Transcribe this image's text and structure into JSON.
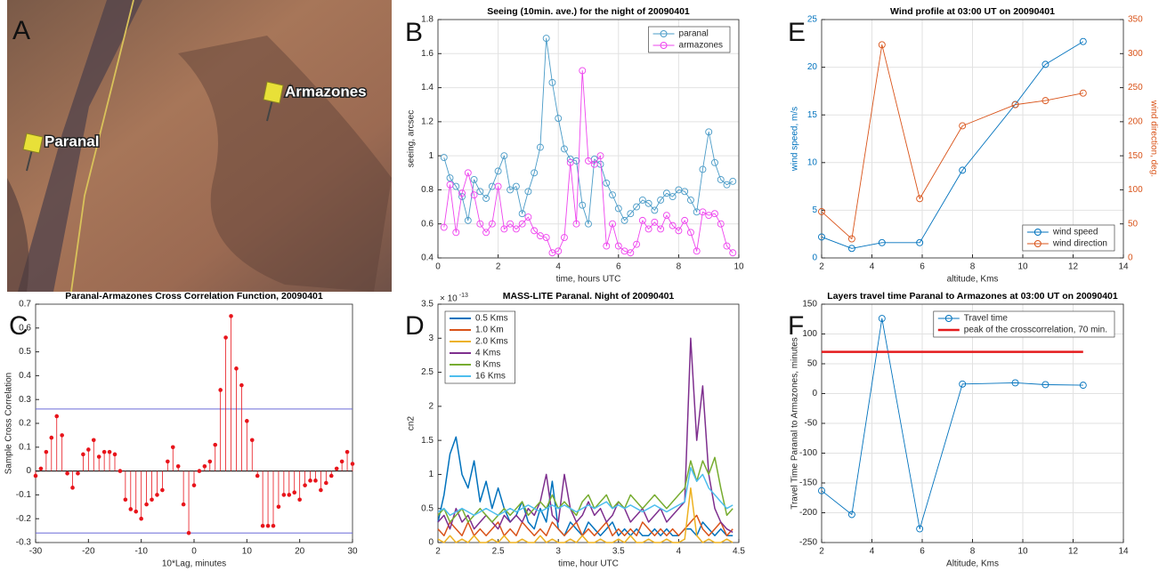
{
  "map": {
    "panel": "A",
    "labels": [
      "Paranal",
      "Armazones"
    ]
  },
  "chart_data": [
    {
      "type": "line",
      "panel": "B",
      "title": "Seeing (10min. ave.) for the night of 20090401",
      "xlabel": "time, hours UTC",
      "ylabel": "seeing, arcsec",
      "xlim": [
        0,
        10
      ],
      "xticks": [
        0,
        2,
        4,
        6,
        8,
        10
      ],
      "ylim": [
        0.4,
        1.8
      ],
      "yticks": [
        0.4,
        0.6,
        0.8,
        1,
        1.2,
        1.4,
        1.6,
        1.8
      ],
      "grid": true,
      "legend": "northeast",
      "x": [
        0.2,
        0.4,
        0.6,
        0.8,
        1.0,
        1.2,
        1.4,
        1.6,
        1.8,
        2.0,
        2.2,
        2.4,
        2.6,
        2.8,
        3.0,
        3.2,
        3.4,
        3.6,
        3.8,
        4.0,
        4.2,
        4.4,
        4.6,
        4.8,
        5.0,
        5.2,
        5.4,
        5.6,
        5.8,
        6.0,
        6.2,
        6.4,
        6.6,
        6.8,
        7.0,
        7.2,
        7.4,
        7.6,
        7.8,
        8.0,
        8.2,
        8.4,
        8.6,
        8.8,
        9.0,
        9.2,
        9.4,
        9.6,
        9.8
      ],
      "series": [
        {
          "name": "paranal",
          "color": "#4a9bc7",
          "marker": true,
          "values": [
            0.99,
            0.87,
            0.82,
            0.76,
            0.62,
            0.86,
            0.79,
            0.75,
            0.82,
            0.91,
            1.0,
            0.8,
            0.82,
            0.66,
            0.79,
            0.9,
            1.05,
            1.69,
            1.43,
            1.22,
            1.04,
            0.98,
            0.97,
            0.71,
            0.6,
            0.98,
            0.95,
            0.84,
            0.77,
            0.69,
            0.62,
            0.66,
            0.7,
            0.74,
            0.72,
            0.68,
            0.74,
            0.78,
            0.76,
            0.8,
            0.79,
            0.74,
            0.67,
            0.92,
            1.14,
            0.96,
            0.86,
            0.83,
            0.85
          ]
        },
        {
          "name": "armazones",
          "color": "#ee44ee",
          "marker": true,
          "values": [
            0.58,
            0.83,
            0.55,
            0.78,
            0.9,
            0.77,
            0.6,
            0.55,
            0.6,
            0.82,
            0.57,
            0.6,
            0.57,
            0.6,
            0.64,
            0.56,
            0.53,
            0.52,
            0.43,
            0.44,
            0.52,
            0.96,
            0.6,
            1.5,
            0.97,
            0.95,
            1.0,
            0.47,
            0.6,
            0.47,
            0.44,
            0.43,
            0.48,
            0.62,
            0.57,
            0.61,
            0.57,
            0.65,
            0.59,
            0.56,
            0.62,
            0.55,
            0.44,
            0.67,
            0.65,
            0.66,
            0.6,
            0.47,
            0.43
          ]
        }
      ]
    },
    {
      "type": "stem",
      "panel": "C",
      "title": "Paranal-Armazones Cross Correlation Function, 20090401",
      "xlabel": "10*Lag, minutes",
      "ylabel": "Sample Cross Correlation",
      "xlim": [
        -30,
        30
      ],
      "xticks": [
        -30,
        -20,
        -10,
        0,
        10,
        20,
        30
      ],
      "ylim": [
        -0.3,
        0.7
      ],
      "yticks": [
        -0.3,
        -0.2,
        -0.1,
        0,
        0.1,
        0.2,
        0.3,
        0.4,
        0.5,
        0.6,
        0.7
      ],
      "grid": false,
      "color": "#e8141b",
      "bound_color": "#6a6ad8",
      "bounds": [
        0.26,
        -0.26
      ],
      "x": [
        -30,
        -29,
        -28,
        -27,
        -26,
        -25,
        -24,
        -23,
        -22,
        -21,
        -20,
        -19,
        -18,
        -17,
        -16,
        -15,
        -14,
        -13,
        -12,
        -11,
        -10,
        -9,
        -8,
        -7,
        -6,
        -5,
        -4,
        -3,
        -2,
        -1,
        0,
        1,
        2,
        3,
        4,
        5,
        6,
        7,
        8,
        9,
        10,
        11,
        12,
        13,
        14,
        15,
        16,
        17,
        18,
        19,
        20,
        21,
        22,
        23,
        24,
        25,
        26,
        27,
        28,
        29,
        30
      ],
      "values": [
        -0.02,
        0.01,
        0.08,
        0.14,
        0.23,
        0.15,
        -0.01,
        -0.07,
        -0.01,
        0.07,
        0.09,
        0.13,
        0.06,
        0.08,
        0.08,
        0.07,
        0.0,
        -0.12,
        -0.16,
        -0.17,
        -0.2,
        -0.14,
        -0.12,
        -0.1,
        -0.08,
        0.04,
        0.1,
        0.02,
        -0.14,
        -0.26,
        -0.06,
        0.0,
        0.02,
        0.04,
        0.11,
        0.34,
        0.56,
        0.65,
        0.43,
        0.36,
        0.21,
        0.13,
        -0.02,
        -0.23,
        -0.23,
        -0.23,
        -0.15,
        -0.1,
        -0.1,
        -0.09,
        -0.12,
        -0.06,
        -0.04,
        -0.04,
        -0.08,
        -0.05,
        -0.02,
        0.01,
        0.04,
        0.08,
        0.03
      ]
    },
    {
      "type": "line",
      "panel": "D",
      "title": "MASS-LITE Paranal. Night of 20090401",
      "xlabel": "time, hour UTC",
      "ylabel": "cn2",
      "y_multiplier": {
        "base": "× 10",
        "exponent": "-13"
      },
      "xlim": [
        2,
        4.5
      ],
      "xticks": [
        2,
        2.5,
        3,
        3.5,
        4,
        4.5
      ],
      "ylim": [
        0,
        3.5
      ],
      "yticks": [
        0,
        0.5,
        1,
        1.5,
        2,
        2.5,
        3,
        3.5
      ],
      "grid": false,
      "legend": "northwest",
      "x": [
        2.0,
        2.05,
        2.1,
        2.15,
        2.2,
        2.25,
        2.3,
        2.35,
        2.4,
        2.45,
        2.5,
        2.55,
        2.6,
        2.65,
        2.7,
        2.75,
        2.8,
        2.85,
        2.9,
        2.95,
        3.0,
        3.05,
        3.1,
        3.15,
        3.2,
        3.25,
        3.3,
        3.35,
        3.4,
        3.45,
        3.5,
        3.55,
        3.6,
        3.65,
        3.7,
        3.75,
        3.8,
        3.85,
        3.9,
        3.95,
        4.0,
        4.05,
        4.1,
        4.15,
        4.2,
        4.25,
        4.3,
        4.35,
        4.4,
        4.45
      ],
      "series": [
        {
          "name": "0.5 Kms",
          "color": "#0072BD",
          "values": [
            0.3,
            0.7,
            1.3,
            1.55,
            1.0,
            0.8,
            1.2,
            0.6,
            0.9,
            0.5,
            0.8,
            0.5,
            0.3,
            0.4,
            0.6,
            0.3,
            0.2,
            0.5,
            0.3,
            0.9,
            0.2,
            0.1,
            0.3,
            0.2,
            0.1,
            0.3,
            0.2,
            0.1,
            0.2,
            0.3,
            0.1,
            0.2,
            0.1,
            0.2,
            0.1,
            0.1,
            0.2,
            0.1,
            0.2,
            0.1,
            0.1,
            0.2,
            0.2,
            0.1,
            0.3,
            0.2,
            0.1,
            0.2,
            0.1,
            0.1
          ]
        },
        {
          "name": "1.0 Km",
          "color": "#D95319",
          "values": [
            0.2,
            0.1,
            0.3,
            0.2,
            0.1,
            0.3,
            0.1,
            0.2,
            0.1,
            0.2,
            0.3,
            0.1,
            0.2,
            0.1,
            0.3,
            0.2,
            0.1,
            0.2,
            0.1,
            0.3,
            0.2,
            0.1,
            0.2,
            0.3,
            0.1,
            0.2,
            0.1,
            0.2,
            0.3,
            0.1,
            0.2,
            0.1,
            0.2,
            0.1,
            0.3,
            0.2,
            0.1,
            0.2,
            0.1,
            0.2,
            0.1,
            0.2,
            0.3,
            0.4,
            0.2,
            0.1,
            0.2,
            0.3,
            0.1,
            0.2
          ]
        },
        {
          "name": "2.0 Kms",
          "color": "#EDB120",
          "values": [
            0.05,
            0,
            0.1,
            0,
            0.05,
            0,
            0.1,
            0,
            0,
            0.05,
            0,
            0.1,
            0,
            0,
            0.05,
            0,
            0,
            0.1,
            0,
            0.05,
            0,
            0,
            0.05,
            0,
            0.1,
            0,
            0,
            0.05,
            0,
            0,
            0.05,
            0,
            0.1,
            0,
            0,
            0.05,
            0,
            0,
            0.05,
            0,
            0,
            0.05,
            0.8,
            0.1,
            0,
            0.05,
            0,
            0,
            0.05,
            0
          ]
        },
        {
          "name": "4 Kms",
          "color": "#7E2F8E",
          "values": [
            0.3,
            0.4,
            0.2,
            0.5,
            0.3,
            0.4,
            0.2,
            0.3,
            0.4,
            0.3,
            0.2,
            0.4,
            0.3,
            0.4,
            0.3,
            0.5,
            0.4,
            0.6,
            1.0,
            0.4,
            0.3,
            1.0,
            0.5,
            0.3,
            0.4,
            0.6,
            0.4,
            0.5,
            0.3,
            0.4,
            0.6,
            0.5,
            0.3,
            0.4,
            0.5,
            0.3,
            0.4,
            0.5,
            0.3,
            0.4,
            0.5,
            0.6,
            3.0,
            1.5,
            2.3,
            1.0,
            0.5,
            0.3,
            0.2,
            0.15
          ]
        },
        {
          "name": "8 Kms",
          "color": "#77AC30",
          "values": [
            0.4,
            0.5,
            0.3,
            0.4,
            0.5,
            0.3,
            0.4,
            0.5,
            0.4,
            0.3,
            0.4,
            0.5,
            0.4,
            0.5,
            0.6,
            0.4,
            0.5,
            0.6,
            0.5,
            0.7,
            0.5,
            0.6,
            0.5,
            0.4,
            0.6,
            0.7,
            0.5,
            0.6,
            0.7,
            0.5,
            0.6,
            0.5,
            0.7,
            0.6,
            0.5,
            0.6,
            0.7,
            0.6,
            0.5,
            0.6,
            0.7,
            0.8,
            1.2,
            0.9,
            1.2,
            1.0,
            1.25,
            0.8,
            0.4,
            0.5
          ]
        },
        {
          "name": "16 Kms",
          "color": "#4DBEEE",
          "values": [
            0.45,
            0.5,
            0.4,
            0.45,
            0.5,
            0.45,
            0.4,
            0.45,
            0.5,
            0.45,
            0.4,
            0.45,
            0.5,
            0.45,
            0.5,
            0.55,
            0.5,
            0.45,
            0.5,
            0.55,
            0.5,
            0.55,
            0.5,
            0.45,
            0.5,
            0.55,
            0.5,
            0.55,
            0.6,
            0.5,
            0.55,
            0.5,
            0.55,
            0.5,
            0.45,
            0.5,
            0.55,
            0.5,
            0.45,
            0.5,
            0.55,
            0.6,
            1.1,
            0.9,
            1.0,
            0.8,
            0.7,
            0.6,
            0.5,
            0.55
          ]
        }
      ]
    },
    {
      "type": "line",
      "panel": "E",
      "title": "Wind profile at 03:00 UT on 20090401",
      "xlabel": "altitude, Kms",
      "ylabel": "wind speed, m/s",
      "y2label": "wind direction, deg.",
      "y_color": "#0072BD",
      "y2_color": "#D95319",
      "xlim": [
        2,
        14
      ],
      "xticks": [
        2,
        4,
        6,
        8,
        10,
        12,
        14
      ],
      "ylim": [
        0,
        25
      ],
      "yticks": [
        0,
        5,
        10,
        15,
        20,
        25
      ],
      "y2lim": [
        0,
        350
      ],
      "y2ticks": [
        0,
        50,
        100,
        150,
        200,
        250,
        300,
        350
      ],
      "grid": true,
      "legend": "southeast",
      "series": [
        {
          "name": "wind speed",
          "color": "#0072BD",
          "marker": true,
          "x": [
            2,
            3.2,
            4.4,
            5.9,
            7.6,
            9.7,
            10.9,
            12.4
          ],
          "values": [
            2.2,
            1.0,
            1.6,
            1.6,
            9.2,
            16.1,
            20.3,
            22.7
          ]
        },
        {
          "name": "wind direction",
          "color": "#D95319",
          "marker": true,
          "axis": "y2",
          "x": [
            2,
            3.2,
            4.4,
            5.9,
            7.6,
            9.7,
            10.9,
            12.4
          ],
          "values": [
            68,
            28,
            313,
            87,
            194,
            225,
            231,
            242
          ]
        }
      ]
    },
    {
      "type": "line",
      "panel": "F",
      "title": "Layers travel time Paranal to Armazones at 03:00 UT on 20090401",
      "xlabel": "Altitude, Kms",
      "ylabel": "Travel Time Paranal to Armazones, minutes",
      "xlim": [
        2,
        14
      ],
      "xticks": [
        2,
        4,
        6,
        8,
        10,
        12,
        14
      ],
      "ylim": [
        -250,
        150
      ],
      "yticks": [
        -250,
        -200,
        -150,
        -100,
        -50,
        0,
        50,
        100,
        150
      ],
      "grid": true,
      "legend": "northeast",
      "series": [
        {
          "name": "Travel time",
          "color": "#0072BD",
          "marker": true,
          "x": [
            2,
            3.2,
            4.4,
            5.9,
            7.6,
            9.7,
            10.9,
            12.4
          ],
          "values": [
            -163,
            -203,
            126,
            -227,
            16,
            18,
            15,
            14
          ]
        },
        {
          "name": "peak of the crosscorrelation, 70 min.",
          "color": "#e41a1c",
          "width": 2.5,
          "x": [
            2,
            12.4
          ],
          "values": [
            70,
            70
          ]
        }
      ]
    }
  ]
}
